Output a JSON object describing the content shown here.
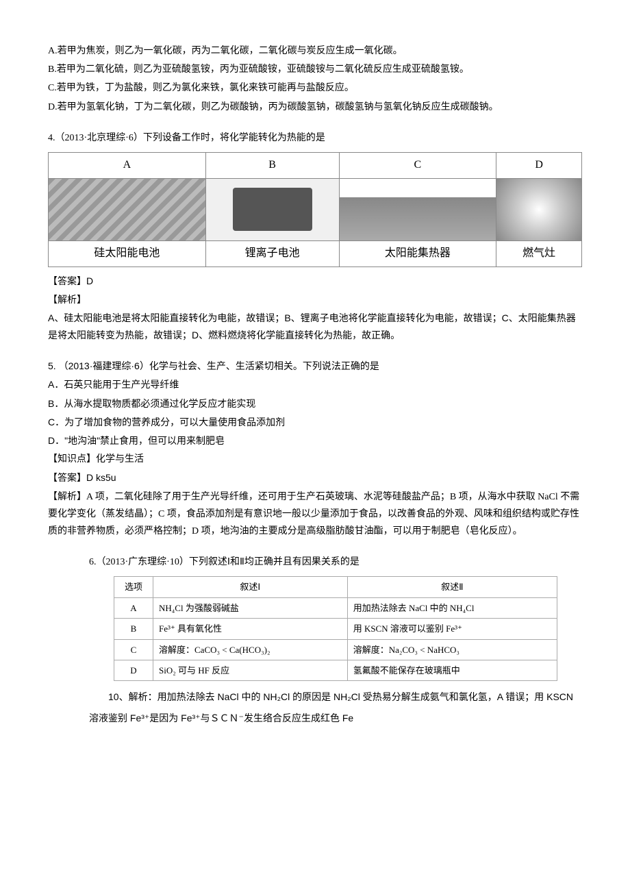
{
  "q3": {
    "optA": "A.若甲为焦炭，则乙为一氧化碳，丙为二氧化碳，二氧化碳与炭反应生成一氧化碳。",
    "optB": "B.若甲为二氧化硫，则乙为亚硫酸氢铵，丙为亚硫酸铵，亚硫酸铵与二氧化硫反应生成亚硫酸氢铵。",
    "optC": "C.若甲为铁，丁为盐酸，则乙为氯化来铁，氯化来铁可能再与盐酸反应。",
    "optD": "D.若甲为氢氧化钠，丁为二氧化碳，则乙为碳酸钠，丙为碳酸氢钠，碳酸氢钠与氢氧化钠反应生成碳酸钠。"
  },
  "q4": {
    "stem": "4.（2013·北京理综·6）下列设备工作时，将化学能转化为热能的是",
    "headers": [
      "A",
      "B",
      "C",
      "D"
    ],
    "labels": [
      "硅太阳能电池",
      "锂离子电池",
      "太阳能集热器",
      "燃气灶"
    ],
    "answerLabel": "【答案】D",
    "analysisLabel": "【解析】",
    "analysisA": "A、硅太阳能电池是将太阳能直接转化为电能，故错误；B、锂离子电池将化学能直接转化为电能，故错误；C、太阳能集热器是将太阳能转变为热能，故错误；D、燃料燃烧将化学能直接转化为热能，故正确。"
  },
  "q5": {
    "stem": "5. （2013·福建理综·6）化学与社会、生产、生活紧切相关。下列说法正确的是",
    "optA": "A．石英只能用于生产光导纤维",
    "optB": "B．从海水提取物质都必须通过化学反应才能实现",
    "optC": "C．为了增加食物的营养成分，可以大量使用食品添加剂",
    "optD": "D．\"地沟油\"禁止食用，但可以用来制肥皂",
    "kpLabel": "【知识点】化学与生活",
    "answerLabel": "【答案】D   ks5u",
    "analysisLabel": "【解析】",
    "analysis": "A 项，二氧化硅除了用于生产光导纤维，还可用于生产石英玻璃、水泥等硅酸盐产品；B 项，从海水中获取 NaCl 不需要化学变化（蒸发结晶）；C 项，食品添加剂是有意识地一般以少量添加于食品，以改善食品的外观、风味和组织结构或贮存性质的非营养物质，必须严格控制；D 项，地沟油的主要成分是高级脂肪酸甘油酯，可以用于制肥皂（皂化反应）。"
  },
  "q6": {
    "stem": "6.（2013·广东理综·10）下列叙述Ⅰ和Ⅱ均正确并且有因果关系的是",
    "headerOpt": "选项",
    "header1": "叙述Ⅰ",
    "header2": "叙述Ⅱ",
    "rows": [
      {
        "opt": "A",
        "s1": "NH₄Cl 为强酸弱碱盐",
        "s2": "用加热法除去 NaCl 中的 NH₄Cl"
      },
      {
        "opt": "B",
        "s1": "Fe³⁺ 具有氧化性",
        "s2": "用 KSCN 溶液可以鉴别 Fe³⁺"
      },
      {
        "opt": "C",
        "s1": "溶解度：CaCO₃ < Ca(HCO₃)₂",
        "s2": "溶解度：Na₂CO₃ < NaHCO₃"
      },
      {
        "opt": "D",
        "s1": "SiO₂ 可与 HF 反应",
        "s2": "氢氟酸不能保存在玻璃瓶中"
      }
    ],
    "analysisNum": "10、",
    "analysis": "解析：用加热法除去 NaCl 中的 NH₂Cl 的原因是 NH₂Cl 受热易分解生成氨气和氯化氢，A 错误；用 KSCN 溶液鉴别 Fe³⁺是因为 Fe³⁺与ＳＣＮ⁻发生络合反应生成红色 Fe"
  }
}
